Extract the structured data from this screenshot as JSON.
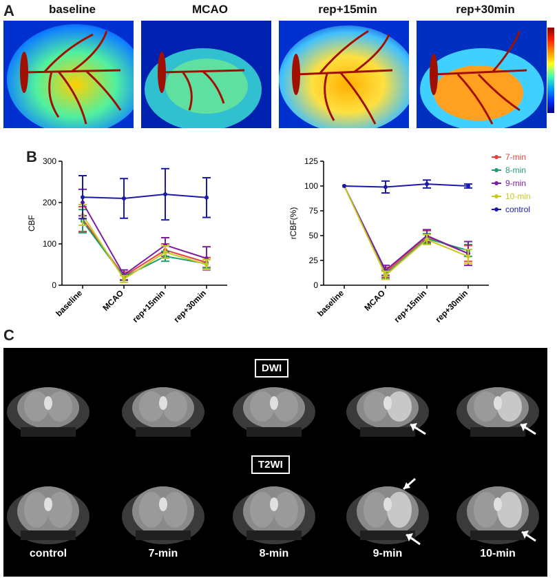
{
  "panel_a": {
    "letter": "A",
    "titles": [
      "baseline",
      "MCAO",
      "rep+15min",
      "rep+30min"
    ]
  },
  "panel_b": {
    "letter": "B"
  },
  "panel_c": {
    "letter": "C",
    "row_labels": [
      "DWI",
      "T2WI"
    ],
    "captions": [
      "control",
      "7-min",
      "8-min",
      "9-min",
      "10-min"
    ]
  },
  "colors": {
    "7-min": "#e8413c",
    "8-min": "#1f9e6e",
    "9-min": "#7a1fa2",
    "10-min": "#c8c81e",
    "control": "#1a1aa8"
  },
  "chart_data": [
    {
      "type": "line",
      "ylabel": "CBF",
      "xlabel": "",
      "categories": [
        "baseline",
        "MCAO",
        "rep+15min",
        "rep+30min"
      ],
      "ylim": [
        0,
        300
      ],
      "yticks": [
        0,
        100,
        200,
        300
      ],
      "series": [
        {
          "name": "7-min",
          "values": [
            160,
            22,
            85,
            55
          ],
          "err": [
            30,
            10,
            15,
            12
          ]
        },
        {
          "name": "8-min",
          "values": [
            155,
            20,
            70,
            52
          ],
          "err": [
            28,
            8,
            12,
            10
          ]
        },
        {
          "name": "9-min",
          "values": [
            200,
            25,
            97,
            65
          ],
          "err": [
            32,
            12,
            18,
            28
          ]
        },
        {
          "name": "10-min",
          "values": [
            170,
            15,
            80,
            50
          ],
          "err": [
            25,
            8,
            15,
            12
          ]
        },
        {
          "name": "control",
          "values": [
            213,
            210,
            220,
            212
          ],
          "err": [
            52,
            48,
            62,
            48
          ]
        }
      ]
    },
    {
      "type": "line",
      "ylabel": "rCBF(%)",
      "xlabel": "",
      "categories": [
        "baseline",
        "MCAO",
        "rep+15min",
        "rep+30min"
      ],
      "ylim": [
        0,
        125
      ],
      "yticks": [
        0,
        25,
        50,
        75,
        100,
        125
      ],
      "legend_position": "top-right",
      "series": [
        {
          "name": "7-min",
          "values": [
            100,
            13,
            49,
            32
          ],
          "err": [
            0,
            5,
            6,
            8
          ]
        },
        {
          "name": "8-min",
          "values": [
            100,
            11,
            47,
            35
          ],
          "err": [
            0,
            4,
            5,
            6
          ]
        },
        {
          "name": "9-min",
          "values": [
            100,
            15,
            50,
            32
          ],
          "err": [
            0,
            5,
            6,
            12
          ]
        },
        {
          "name": "10-min",
          "values": [
            100,
            10,
            46,
            29
          ],
          "err": [
            0,
            4,
            5,
            7
          ]
        },
        {
          "name": "control",
          "values": [
            100,
            99,
            102,
            100
          ],
          "err": [
            0,
            6,
            4,
            2
          ]
        }
      ]
    }
  ]
}
